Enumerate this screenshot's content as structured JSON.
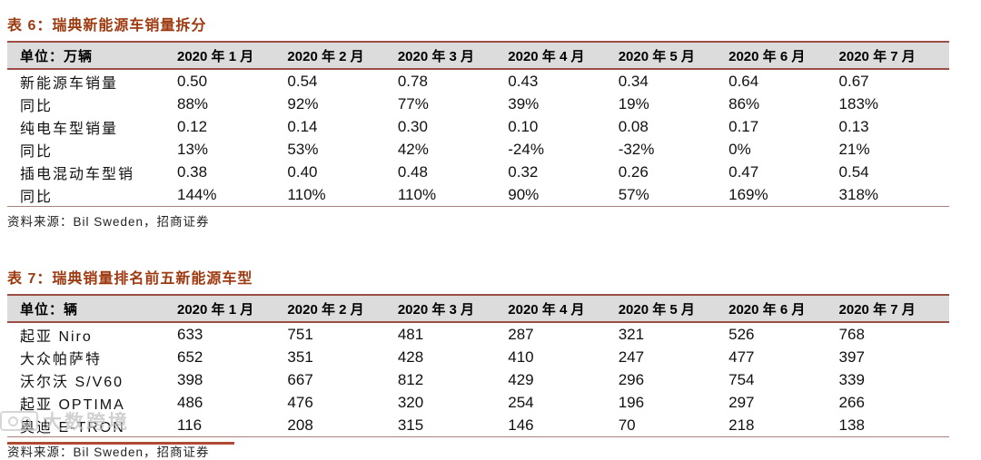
{
  "page": {
    "accent_color": "#9e3a10",
    "rule_color": "#9b4f44",
    "header_bg": "#dcdcdc",
    "bottom_rule_color": "#b04a33"
  },
  "tables": [
    {
      "title": "表 6：瑞典新能源车销量拆分",
      "unit_header": "单位：万辆",
      "columns": [
        "2020 年 1 月",
        "2020 年 2 月",
        "2020 年 3 月",
        "2020 年 4 月",
        "2020 年 5 月",
        "2020 年 6 月",
        "2020 年 7 月"
      ],
      "rows": [
        {
          "label": "新能源车销量",
          "values": [
            "0.50",
            "0.54",
            "0.78",
            "0.43",
            "0.34",
            "0.64",
            "0.67"
          ]
        },
        {
          "label": "同比",
          "values": [
            "88%",
            "92%",
            "77%",
            "39%",
            "19%",
            "86%",
            "183%"
          ]
        },
        {
          "label": "纯电车型销量",
          "values": [
            "0.12",
            "0.14",
            "0.30",
            "0.10",
            "0.08",
            "0.17",
            "0.13"
          ]
        },
        {
          "label": "同比",
          "values": [
            "13%",
            "53%",
            "42%",
            "-24%",
            "-32%",
            "0%",
            "21%"
          ]
        },
        {
          "label": "插电混动车型销",
          "values": [
            "0.38",
            "0.40",
            "0.48",
            "0.32",
            "0.26",
            "0.47",
            "0.54"
          ]
        },
        {
          "label": "同比",
          "values": [
            "144%",
            "110%",
            "110%",
            "90%",
            "57%",
            "169%",
            "318%"
          ]
        }
      ],
      "source": "资料来源：Bil Sweden，招商证券"
    },
    {
      "title": "表 7：瑞典销量排名前五新能源车型",
      "unit_header": "单位：辆",
      "columns": [
        "2020 年 1 月",
        "2020 年 2 月",
        "2020 年 3 月",
        "2020 年 4 月",
        "2020 年 5 月",
        "2020 年 6 月",
        "2020 年 7 月"
      ],
      "rows": [
        {
          "label": "起亚 Niro",
          "values": [
            "633",
            "751",
            "481",
            "287",
            "321",
            "526",
            "768"
          ]
        },
        {
          "label": "大众帕萨特",
          "values": [
            "652",
            "351",
            "428",
            "410",
            "247",
            "477",
            "397"
          ]
        },
        {
          "label": "沃尔沃 S/V60",
          "values": [
            "398",
            "667",
            "812",
            "429",
            "296",
            "754",
            "339"
          ]
        },
        {
          "label": "起亚 OPTIMA",
          "values": [
            "486",
            "476",
            "320",
            "254",
            "196",
            "297",
            "266"
          ]
        },
        {
          "label": "奥迪 E-TRON",
          "values": [
            "116",
            "208",
            "315",
            "146",
            "70",
            "218",
            "138"
          ]
        }
      ],
      "source": "资料来源：Bil Sweden，招商证券"
    }
  ],
  "watermark": {
    "text": "大数跨境",
    "icon": "watermark-logo",
    "color": "#c2c2c2"
  }
}
